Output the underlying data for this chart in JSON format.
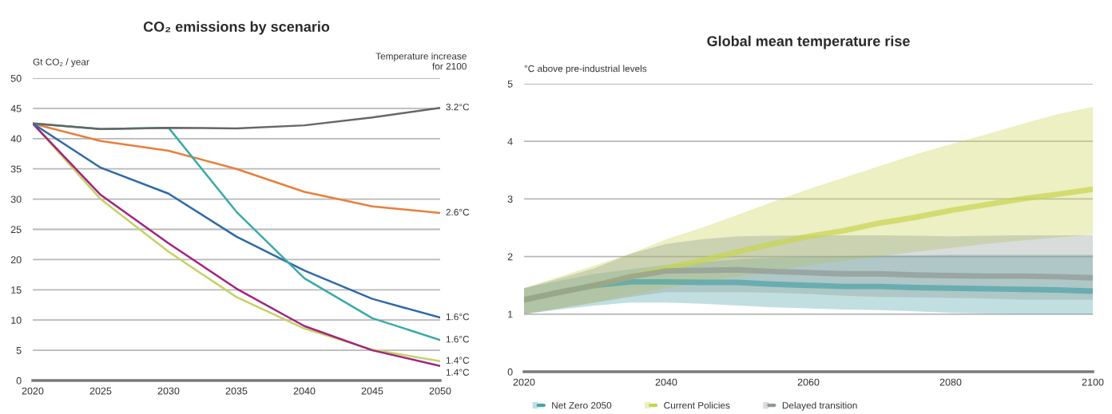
{
  "chart_data": [
    {
      "type": "line",
      "title": "CO₂ emissions by scenario",
      "ylabel": "Gt CO₂ / year",
      "x": [
        2020,
        2025,
        2030,
        2035,
        2040,
        2045,
        2050
      ],
      "xlim": [
        2020,
        2050
      ],
      "xticks": [
        2020,
        2025,
        2030,
        2035,
        2040,
        2045,
        2050
      ],
      "ylim": [
        0,
        50
      ],
      "yticks": [
        0,
        5,
        10,
        15,
        20,
        25,
        30,
        35,
        40,
        45,
        50
      ],
      "grid": "y",
      "series": [
        {
          "name": "2.6°C",
          "color": "#e87f3c",
          "values": [
            42.5,
            39.6,
            38.0,
            35.0,
            31.2,
            28.8,
            27.7
          ]
        },
        {
          "name": "1.4°C",
          "color": "#c5d262",
          "values": [
            42.5,
            30.0,
            21.3,
            13.8,
            8.6,
            5.1,
            3.2
          ]
        },
        {
          "name": "1.4°C",
          "color": "#a3237f",
          "values": [
            42.5,
            30.7,
            22.7,
            15.2,
            9.0,
            5.0,
            2.4
          ]
        },
        {
          "name": "1.6°C",
          "color": "#2e6aa6",
          "values": [
            42.5,
            35.2,
            30.9,
            23.8,
            18.2,
            13.5,
            10.4
          ]
        },
        {
          "name": "1.6°C",
          "color": "#3ba9a9",
          "values": [
            42.5,
            41.6,
            41.8,
            27.9,
            16.9,
            10.3,
            6.7
          ]
        },
        {
          "name": "3.2°C",
          "color": "#666666",
          "values": [
            42.5,
            41.6,
            41.8,
            41.7,
            42.2,
            43.5,
            45.1
          ]
        }
      ],
      "annotations": [
        "Temperature increase\nfor 2100"
      ]
    },
    {
      "type": "line",
      "title": "Global mean temperature rise",
      "ylabel": "°C above pre-industrial levels",
      "x": [
        2020,
        2025,
        2030,
        2035,
        2040,
        2045,
        2050,
        2055,
        2060,
        2065,
        2070,
        2075,
        2080,
        2085,
        2090,
        2095,
        2100
      ],
      "xlim": [
        2020,
        2100
      ],
      "xticks": [
        2020,
        2040,
        2060,
        2080,
        2100
      ],
      "ylim": [
        0,
        5
      ],
      "yticks": [
        0,
        1,
        2,
        3,
        4,
        5
      ],
      "grid": "y",
      "legend": "bottom",
      "series": [
        {
          "name": "Net Zero 2050",
          "color": "#4da3a8",
          "values": [
            1.25,
            1.38,
            1.5,
            1.56,
            1.56,
            1.55,
            1.55,
            1.52,
            1.5,
            1.48,
            1.48,
            1.46,
            1.45,
            1.44,
            1.43,
            1.42,
            1.4
          ],
          "lower": [
            1.0,
            1.08,
            1.15,
            1.2,
            1.2,
            1.18,
            1.15,
            1.12,
            1.1,
            1.08,
            1.07,
            1.05,
            1.02,
            1.01,
            1.0,
            1.0,
            1.0
          ],
          "upper": [
            1.45,
            1.58,
            1.7,
            1.78,
            1.85,
            1.9,
            1.95,
            1.98,
            2.0,
            2.01,
            2.02,
            2.02,
            2.03,
            2.03,
            2.03,
            2.03,
            2.03
          ]
        },
        {
          "name": "Current Policies",
          "color": "#c8d450",
          "values": [
            1.25,
            1.38,
            1.5,
            1.65,
            1.8,
            1.93,
            2.08,
            2.22,
            2.35,
            2.45,
            2.58,
            2.68,
            2.8,
            2.9,
            3.0,
            3.08,
            3.17
          ],
          "lower": [
            1.0,
            1.1,
            1.2,
            1.33,
            1.45,
            1.55,
            1.65,
            1.75,
            1.85,
            1.93,
            2.0,
            2.08,
            2.15,
            2.22,
            2.28,
            2.33,
            2.38
          ],
          "upper": [
            1.45,
            1.65,
            1.85,
            2.05,
            2.3,
            2.5,
            2.72,
            2.95,
            3.17,
            3.37,
            3.57,
            3.77,
            3.95,
            4.12,
            4.3,
            4.47,
            4.6
          ]
        },
        {
          "name": "Delayed transition",
          "color": "#909a96",
          "values": [
            1.25,
            1.38,
            1.5,
            1.65,
            1.75,
            1.76,
            1.77,
            1.74,
            1.72,
            1.7,
            1.7,
            1.68,
            1.67,
            1.66,
            1.66,
            1.65,
            1.63
          ],
          "lower": [
            1.0,
            1.1,
            1.2,
            1.3,
            1.38,
            1.38,
            1.38,
            1.37,
            1.35,
            1.32,
            1.3,
            1.29,
            1.28,
            1.27,
            1.25,
            1.25,
            1.25
          ],
          "upper": [
            1.45,
            1.62,
            1.8,
            2.05,
            2.22,
            2.3,
            2.35,
            2.36,
            2.37,
            2.37,
            2.37,
            2.36,
            2.35,
            2.36,
            2.37,
            2.37,
            2.37
          ]
        }
      ]
    }
  ]
}
